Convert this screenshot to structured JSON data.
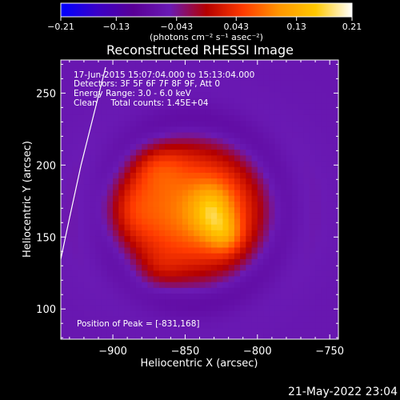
{
  "chart_data": {
    "type": "heatmap",
    "title": "Reconstructed RHESSI Image",
    "xlabel": "Heliocentric X (arcsec)",
    "ylabel": "Heliocentric Y (arcsec)",
    "xlim": [
      -936,
      -744
    ],
    "ylim": [
      79,
      273
    ],
    "xticks": [
      -900,
      -850,
      -800,
      -750
    ],
    "yticks": [
      100,
      150,
      200,
      250
    ],
    "colorbar": {
      "min": -0.21,
      "max": 0.21,
      "ticks": [
        -0.21,
        -0.13,
        -0.043,
        0.043,
        0.13,
        0.21
      ],
      "tick_labels": [
        "−0.21",
        "−0.13",
        "−0.043",
        "0.043",
        "0.13",
        "0.21"
      ],
      "unit_label": "(photons cm⁻² s⁻¹ asec⁻²)",
      "colormap": [
        "#0000ff",
        "#3a00c8",
        "#5a0096",
        "#6a1ab4",
        "#b40000",
        "#ff3a00",
        "#ff9600",
        "#ffc800",
        "#ffffff"
      ]
    },
    "annotations": [
      "17-Jun-2015 15:07:04.000 to 15:13:04.000",
      "Detectors: 3F 5F 6F 7F 8F 9F, Att 0",
      "Energy Range: 3.0 - 6.0 keV",
      "Clean     Total counts: 1.45E+04"
    ],
    "peak_label": "Position of Peak = [-831,168]",
    "peak": {
      "x": -831,
      "y": 168
    },
    "limb_curve": [
      [
        -937,
        130
      ],
      [
        -930,
        163
      ],
      [
        -922,
        200
      ],
      [
        -912,
        240
      ],
      [
        -905,
        268
      ]
    ],
    "source_model": {
      "background": -0.06,
      "components": [
        {
          "cx": -845,
          "cy": 168,
          "sx": 38,
          "sy": 34,
          "amp": 0.15
        },
        {
          "cx": -831,
          "cy": 168,
          "sx": 10,
          "sy": 13,
          "amp": 0.085
        },
        {
          "cx": -822,
          "cy": 152,
          "sx": 8,
          "sy": 9,
          "amp": 0.06
        },
        {
          "cx": -870,
          "cy": 200,
          "sx": 14,
          "sy": 12,
          "amp": 0.04
        },
        {
          "cx": -890,
          "cy": 170,
          "sx": 14,
          "sy": 16,
          "amp": 0.035
        },
        {
          "cx": -870,
          "cy": 125,
          "sx": 12,
          "sy": 10,
          "amp": 0.03
        }
      ],
      "ring": {
        "cx": -845,
        "cy": 168,
        "radius": 62,
        "width": 10,
        "amp": -0.045
      }
    }
  },
  "footer": {
    "timestamp": "21-May-2022 23:04"
  }
}
